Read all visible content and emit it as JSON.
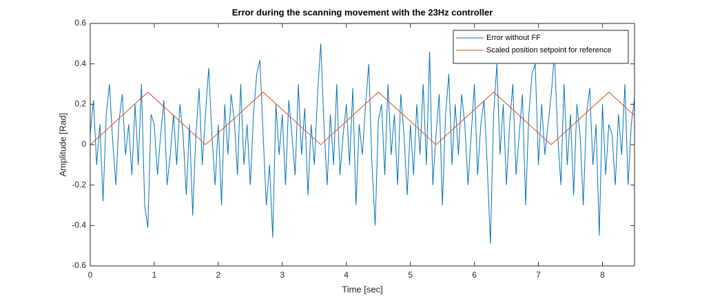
{
  "chart_data": {
    "type": "line",
    "title": "Error during the scanning movement with the 23Hz controller",
    "x_label": "Time [sec]",
    "y_label": "Amplitude [Rad]",
    "xlim": [
      0,
      8.5
    ],
    "ylim": [
      -0.6,
      0.6
    ],
    "xticks": [
      0,
      1,
      2,
      3,
      4,
      5,
      6,
      7,
      8
    ],
    "yticks": [
      -0.6,
      -0.4,
      -0.2,
      0,
      0.2,
      0.4,
      0.6
    ],
    "grid": false,
    "legend": "upper right",
    "series": [
      {
        "name": "Error without FF",
        "color": "#0072bd",
        "x": [
          0,
          0.05,
          0.1,
          0.15,
          0.2,
          0.25,
          0.3,
          0.35,
          0.4,
          0.45,
          0.5,
          0.55,
          0.6,
          0.65,
          0.7,
          0.75,
          0.8,
          0.85,
          0.9,
          0.95,
          1,
          1.05,
          1.1,
          1.15,
          1.2,
          1.25,
          1.3,
          1.35,
          1.4,
          1.45,
          1.5,
          1.55,
          1.6,
          1.65,
          1.7,
          1.75,
          1.8,
          1.85,
          1.9,
          1.95,
          2,
          2.05,
          2.1,
          2.15,
          2.2,
          2.25,
          2.3,
          2.35,
          2.4,
          2.45,
          2.5,
          2.55,
          2.6,
          2.65,
          2.7,
          2.75,
          2.8,
          2.85,
          2.9,
          2.95,
          3,
          3.05,
          3.1,
          3.15,
          3.2,
          3.25,
          3.3,
          3.35,
          3.4,
          3.45,
          3.5,
          3.55,
          3.6,
          3.65,
          3.7,
          3.75,
          3.8,
          3.85,
          3.9,
          3.95,
          4,
          4.05,
          4.1,
          4.15,
          4.2,
          4.25,
          4.3,
          4.35,
          4.4,
          4.45,
          4.5,
          4.55,
          4.6,
          4.65,
          4.7,
          4.75,
          4.8,
          4.85,
          4.9,
          4.95,
          5,
          5.05,
          5.1,
          5.15,
          5.2,
          5.25,
          5.3,
          5.35,
          5.4,
          5.45,
          5.5,
          5.55,
          5.6,
          5.65,
          5.7,
          5.75,
          5.8,
          5.85,
          5.9,
          5.95,
          6,
          6.05,
          6.1,
          6.15,
          6.2,
          6.25,
          6.3,
          6.35,
          6.4,
          6.45,
          6.5,
          6.55,
          6.6,
          6.65,
          6.7,
          6.75,
          6.8,
          6.85,
          6.9,
          6.95,
          7,
          7.05,
          7.1,
          7.15,
          7.2,
          7.25,
          7.3,
          7.35,
          7.4,
          7.45,
          7.5,
          7.55,
          7.6,
          7.65,
          7.7,
          7.75,
          7.8,
          7.85,
          7.9,
          7.95,
          8,
          8.05,
          8.1,
          8.15,
          8.2,
          8.25,
          8.3,
          8.35,
          8.4,
          8.45,
          8.5
        ],
        "values": [
          0.05,
          0.22,
          -0.1,
          0.1,
          -0.28,
          0.15,
          0.3,
          0.02,
          -0.2,
          0.12,
          0.25,
          -0.05,
          0.1,
          -0.15,
          0.2,
          -0.1,
          0.3,
          -0.3,
          -0.41,
          0.15,
          0.1,
          -0.15,
          0.05,
          0.22,
          -0.2,
          -0.05,
          0.15,
          -0.1,
          0.2,
          0.05,
          -0.25,
          0.1,
          -0.35,
          0.05,
          0.28,
          -0.1,
          0.15,
          0.38,
          0.05,
          -0.2,
          0.1,
          -0.3,
          0.2,
          -0.05,
          0.25,
          0.12,
          -0.15,
          0.3,
          -0.1,
          0.1,
          -0.2,
          0.15,
          0.35,
          0.42,
          0.05,
          -0.3,
          -0.1,
          -0.46,
          0.2,
          -0.05,
          0.15,
          -0.2,
          0.22,
          0.05,
          -0.15,
          0.3,
          -0.05,
          0.18,
          -0.25,
          0.1,
          -0.1,
          0.25,
          0.5,
          0.1,
          -0.2,
          0.15,
          -0.1,
          0.3,
          -0.15,
          0.05,
          0.2,
          -0.1,
          0.28,
          -0.3,
          0.1,
          -0.05,
          0.2,
          0.4,
          -0.1,
          -0.4,
          0.12,
          0.2,
          -0.15,
          0.3,
          -0.05,
          0.15,
          -0.2,
          0.25,
          0.05,
          -0.25,
          0.1,
          -0.15,
          0.2,
          -0.05,
          0.3,
          -0.1,
          0.46,
          -0.2,
          0.05,
          0.25,
          -0.3,
          0.15,
          0.35,
          -0.1,
          0.2,
          -0.05,
          0.25,
          0.1,
          -0.2,
          0.05,
          0.3,
          -0.15,
          0.1,
          0.22,
          -0.1,
          -0.49,
          0.15,
          0.4,
          -0.05,
          0.2,
          -0.2,
          0.1,
          0.3,
          -0.15,
          0.05,
          0.25,
          -0.3,
          0.15,
          0.35,
          0.4,
          -0.1,
          0.2,
          -0.05,
          0.1,
          0.25,
          0.45,
          0.05,
          -0.2,
          0.3,
          -0.1,
          0.15,
          -0.25,
          0.2,
          0.05,
          -0.3,
          0.15,
          0.28,
          -0.1,
          0.1,
          -0.45,
          0.2,
          -0.15,
          0.1,
          0.05,
          -0.2,
          0.15,
          -0.05,
          0.3,
          -0.2,
          0.1,
          0.23
        ]
      },
      {
        "name": "Scaled position setpoint for reference",
        "color": "#d95319",
        "x": [
          0,
          0.9,
          1.8,
          2.7,
          3.6,
          4.5,
          5.4,
          6.3,
          7.2,
          8.1,
          8.5
        ],
        "values": [
          0,
          0.26,
          0,
          0.26,
          0,
          0.26,
          0,
          0.26,
          0,
          0.26,
          0.144
        ]
      }
    ]
  }
}
